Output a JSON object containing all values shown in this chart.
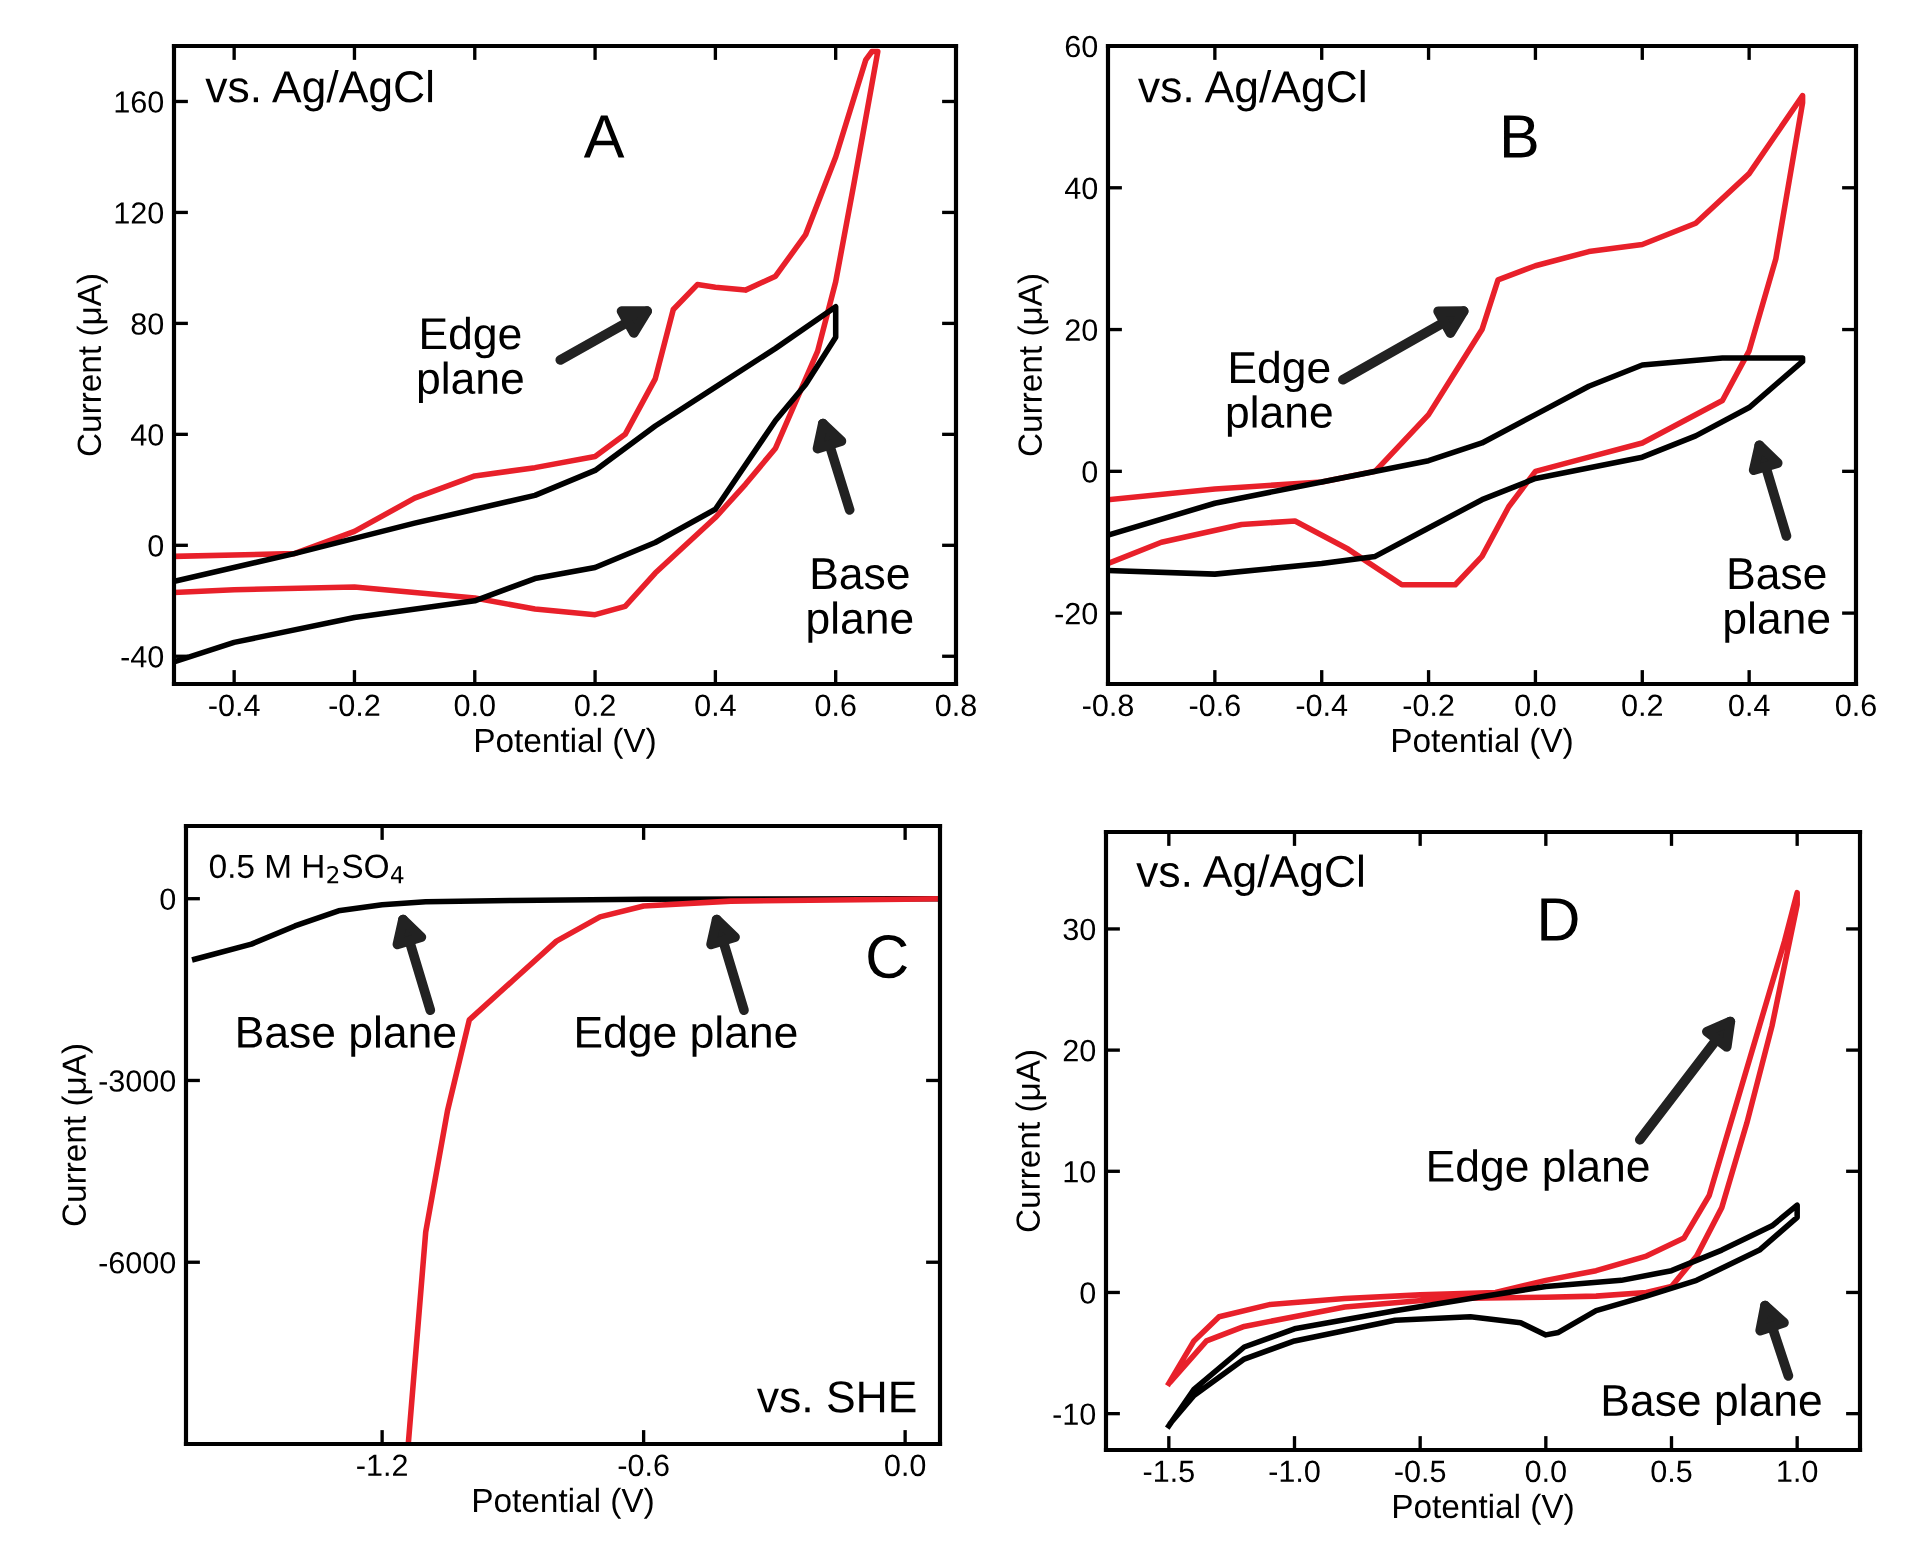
{
  "chart_data": [
    {
      "type": "line",
      "title": "A",
      "xlabel": "Potential (V)",
      "ylabel": "Current (μA)",
      "xlim": [
        -0.5,
        0.8
      ],
      "ylim": [
        -50,
        180
      ],
      "xticks": [
        -0.4,
        -0.2,
        {
          "value": 0,
          "label": "0.0"
        },
        0.2,
        0.4,
        0.6,
        0.8
      ],
      "yticks": [
        -40,
        0,
        40,
        80,
        120,
        160
      ],
      "grid": false,
      "annotations": [
        "vs. Ag/AgCl",
        "Edge\nplane",
        "Base\nplane"
      ],
      "series": [
        {
          "color": "#e8202a",
          "x": [
            -0.5,
            -0.3,
            -0.2,
            -0.1,
            0.0,
            0.1,
            0.2,
            0.25,
            0.3,
            0.33,
            0.37,
            0.4,
            0.45,
            0.5,
            0.55,
            0.6,
            0.65,
            0.66,
            0.67,
            0.63,
            0.6,
            0.57,
            0.5,
            0.45,
            0.4,
            0.3,
            0.25,
            0.2,
            0.1,
            0.0,
            -0.2,
            -0.4,
            -0.5
          ],
          "values": [
            -4,
            -3,
            5,
            17,
            25,
            28,
            32,
            40,
            60,
            85,
            94,
            93,
            92,
            97,
            112,
            140,
            175,
            178,
            178,
            130,
            95,
            70,
            35,
            22,
            10,
            -10,
            -22,
            -25,
            -23,
            -19,
            -15,
            -16,
            -17
          ]
        },
        {
          "color": "#000000",
          "x": [
            -0.5,
            -0.3,
            -0.1,
            0.0,
            0.1,
            0.2,
            0.3,
            0.4,
            0.5,
            0.6,
            0.6,
            0.55,
            0.5,
            0.4,
            0.3,
            0.2,
            0.1,
            0.0,
            -0.2,
            -0.4,
            -0.5
          ],
          "values": [
            -13,
            -3,
            8,
            13,
            18,
            27,
            43,
            57,
            71,
            86,
            75,
            58,
            45,
            13,
            1,
            -8,
            -12,
            -20,
            -26,
            -35,
            -42
          ]
        }
      ]
    },
    {
      "type": "line",
      "title": "B",
      "xlabel": "Potential (V)",
      "ylabel": "Current (μA)",
      "xlim": [
        -0.8,
        0.6
      ],
      "ylim": [
        -30,
        60
      ],
      "xticks": [
        -0.8,
        -0.6,
        -0.4,
        -0.2,
        {
          "value": 0,
          "label": "0.0"
        },
        0.2,
        0.4,
        0.6
      ],
      "yticks": [
        -20,
        0,
        20,
        40,
        60
      ],
      "grid": false,
      "annotations": [
        "vs. Ag/AgCl",
        "Edge\nplane",
        "Base\nplane"
      ],
      "series": [
        {
          "color": "#e8202a",
          "x": [
            -0.8,
            -0.6,
            -0.4,
            -0.3,
            -0.2,
            -0.1,
            -0.07,
            0.0,
            0.1,
            0.2,
            0.3,
            0.4,
            0.5,
            0.5,
            0.45,
            0.4,
            0.35,
            0.2,
            0.1,
            0.0,
            -0.05,
            -0.1,
            -0.15,
            -0.25,
            -0.35,
            -0.45,
            -0.55,
            -0.7,
            -0.8
          ],
          "values": [
            -4,
            -2.5,
            -1.5,
            0,
            8,
            20,
            27,
            29,
            31,
            32,
            35,
            42,
            53,
            52,
            30,
            17,
            10,
            4,
            2,
            0,
            -5,
            -12,
            -16,
            -16,
            -11,
            -7,
            -7.5,
            -10,
            -13
          ]
        },
        {
          "color": "#000000",
          "x": [
            -0.8,
            -0.6,
            -0.4,
            -0.2,
            -0.1,
            0.0,
            0.1,
            0.2,
            0.35,
            0.5,
            0.5,
            0.4,
            0.3,
            0.2,
            0.0,
            -0.1,
            -0.2,
            -0.3,
            -0.4,
            -0.6,
            -0.8
          ],
          "values": [
            -9,
            -4.5,
            -1.5,
            1.5,
            4,
            8,
            12,
            15,
            16,
            16,
            15.5,
            9,
            5,
            2,
            -1,
            -4,
            -8,
            -12,
            -13,
            -14.5,
            -14
          ]
        }
      ]
    },
    {
      "type": "line",
      "title": "C",
      "xlabel": "Potential (V)",
      "ylabel": "Current (μA)",
      "xlim": [
        -1.65,
        0.08
      ],
      "ylim": [
        -9000,
        1200
      ],
      "xticks": [
        -1.2,
        -0.6,
        {
          "value": 0,
          "label": "0.0"
        }
      ],
      "yticks": [
        -6000,
        -3000,
        0
      ],
      "grid": false,
      "annotations": [
        "0.5 M H$_{2}$SO$_{4}$",
        "vs. SHE",
        "Base plane",
        "Edge plane"
      ],
      "series": [
        {
          "color": "#000000",
          "x": [
            -1.63,
            -1.5,
            -1.4,
            -1.3,
            -1.2,
            -1.1,
            -0.9,
            -0.6,
            0.0,
            0.08
          ],
          "values": [
            -1000,
            -750,
            -450,
            -200,
            -100,
            -50,
            -30,
            -10,
            0,
            0
          ]
        },
        {
          "color": "#e8202a",
          "x": [
            -1.14,
            -1.1,
            -1.05,
            -1.0,
            -0.9,
            -0.8,
            -0.7,
            -0.6,
            -0.4,
            0.0,
            0.08
          ],
          "values": [
            -9000,
            -5500,
            -3500,
            -2000,
            -1350,
            -700,
            -300,
            -120,
            -40,
            -10,
            0
          ]
        }
      ]
    },
    {
      "type": "line",
      "title": "D",
      "xlabel": "Potential (V)",
      "ylabel": "Current (μA)",
      "xlim": [
        -1.75,
        1.25
      ],
      "ylim": [
        -13,
        38
      ],
      "xticks": [
        -1.5,
        {
          "value": -1,
          "label": "-1.0"
        },
        -0.5,
        {
          "value": 0,
          "label": "0.0"
        },
        0.5,
        {
          "value": 1,
          "label": "1.0"
        }
      ],
      "yticks": [
        -10,
        0,
        10,
        20,
        30
      ],
      "grid": false,
      "annotations": [
        "vs. Ag/AgCl",
        "Edge plane",
        "Base plane"
      ],
      "series": [
        {
          "color": "#e8202a",
          "x": [
            -1.5,
            -1.4,
            -1.3,
            -1.1,
            -0.8,
            -0.5,
            -0.2,
            0.0,
            0.2,
            0.4,
            0.55,
            0.65,
            0.75,
            0.85,
            0.95,
            1.0,
            1.0,
            0.9,
            0.8,
            0.7,
            0.6,
            0.5,
            0.4,
            0.2,
            0.0,
            -0.4,
            -0.8,
            -1.2,
            -1.35,
            -1.49
          ],
          "values": [
            -7.5,
            -4,
            -2,
            -1,
            -0.5,
            -0.2,
            0,
            1,
            1.8,
            3,
            4.5,
            8,
            15,
            22,
            29,
            33,
            32,
            22,
            14,
            7,
            3,
            0.5,
            0,
            -0.3,
            -0.4,
            -0.5,
            -1.2,
            -2.8,
            -4,
            -7.3
          ]
        },
        {
          "color": "#000000",
          "x": [
            -1.5,
            -1.4,
            -1.2,
            -1.0,
            -0.6,
            -0.3,
            0.0,
            0.3,
            0.5,
            0.7,
            0.9,
            1.0,
            1.0,
            0.85,
            0.6,
            0.4,
            0.2,
            0.05,
            0.0,
            -0.1,
            -0.3,
            -0.6,
            -1.0,
            -1.2,
            -1.4,
            -1.49
          ],
          "values": [
            -11,
            -8,
            -4.5,
            -3,
            -1.5,
            -0.5,
            0.5,
            1,
            1.8,
            3.5,
            5.5,
            7.2,
            6.2,
            3.5,
            1,
            -0.3,
            -1.5,
            -3.3,
            -3.5,
            -2.5,
            -2,
            -2.3,
            -4,
            -5.5,
            -8.5,
            -10.7
          ]
        }
      ]
    }
  ]
}
